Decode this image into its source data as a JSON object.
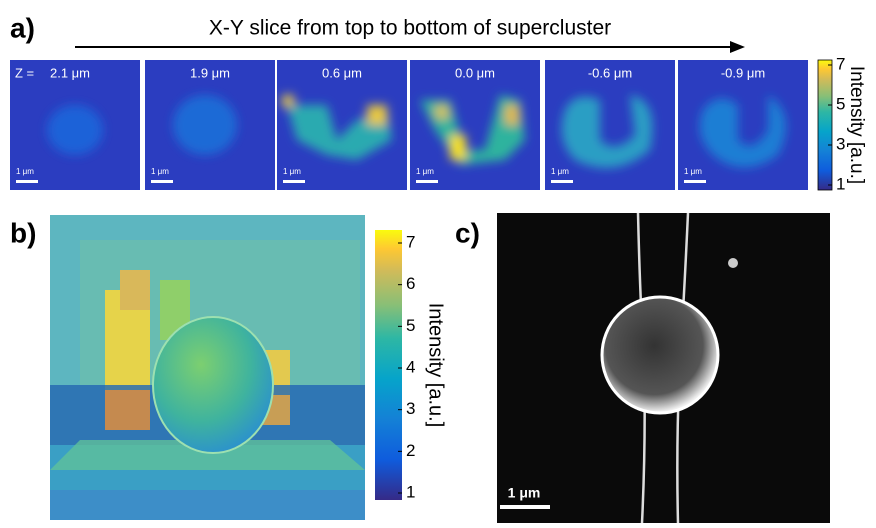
{
  "panel_a": {
    "label": "a)",
    "title": "X-Y slice from top to bottom of supercluster",
    "z_prefix": "Z =",
    "slices": [
      {
        "z": "2.1 μm",
        "scale_bar": "1 μm"
      },
      {
        "z": "1.9 μm",
        "scale_bar": "1 μm"
      },
      {
        "z": "0.6 μm",
        "scale_bar": "1 μm"
      },
      {
        "z": "0.0 μm",
        "scale_bar": "1 μm"
      },
      {
        "z": "-0.6 μm",
        "scale_bar": "1 μm"
      },
      {
        "z": "-0.9 μm",
        "scale_bar": "1 μm"
      }
    ],
    "colorbar": {
      "ticks": [
        1,
        3,
        5,
        7
      ],
      "label": "Intensity [a.u.]"
    }
  },
  "panel_b": {
    "label": "b)",
    "colorbar": {
      "ticks": [
        1,
        2,
        3,
        4,
        5,
        6,
        7
      ],
      "label": "Intensity [a.u.]"
    }
  },
  "panel_c": {
    "label": "c)",
    "scale_bar": "1 μm"
  }
}
